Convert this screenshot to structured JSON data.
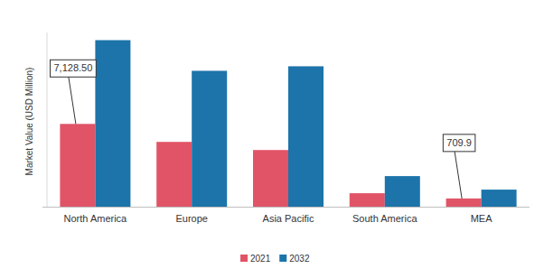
{
  "chart_data": {
    "type": "bar",
    "y_label": "Market Value (USD Million)",
    "categories": [
      "North America",
      "Europe",
      "Asia Pacific",
      "South America",
      "MEA"
    ],
    "series": [
      {
        "name": "2021",
        "color": "#e15467",
        "values": [
          7128.5,
          5580,
          4880,
          1160,
          709.9
        ],
        "value_labels": [
          "7,128.50",
          null,
          null,
          null,
          "709.9"
        ]
      },
      {
        "name": "2032",
        "color": "#1c74aa",
        "values": [
          14340,
          11700,
          12090,
          2635,
          1470
        ]
      }
    ],
    "ylim": [
      0,
      15000
    ],
    "tick_labels": "x",
    "data_labels": true,
    "grid": false,
    "legend": "bottom"
  }
}
